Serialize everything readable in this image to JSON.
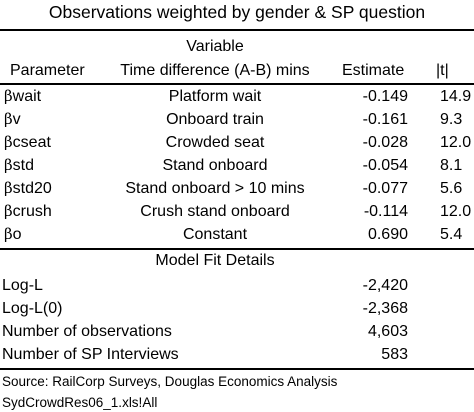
{
  "title": "Observations weighted by gender & SP question",
  "variable_header": "Variable",
  "columns": {
    "parameter": "Parameter",
    "time_difference": "Time difference (A-B) mins",
    "estimate": "Estimate",
    "t": "|t|"
  },
  "rows": [
    {
      "beta": "β",
      "sub": "wait",
      "description": "Platform wait",
      "estimate": "-0.149",
      "t": "14.9"
    },
    {
      "beta": "β",
      "sub": "v",
      "description": "Onboard train",
      "estimate": "-0.161",
      "t": "9.3"
    },
    {
      "beta": "β",
      "sub": "cseat",
      "description": "Crowded seat",
      "estimate": "-0.028",
      "t": "12.0"
    },
    {
      "beta": "β",
      "sub": "std",
      "description": "Stand onboard",
      "estimate": "-0.054",
      "t": "8.1"
    },
    {
      "beta": "β",
      "sub": "std20",
      "description": "Stand onboard > 10 mins",
      "estimate": "-0.077",
      "t": "5.6"
    },
    {
      "beta": "β",
      "sub": "crush",
      "description": "Crush stand onboard",
      "estimate": "-0.114",
      "t": "12.0"
    },
    {
      "beta": "β",
      "sub": "o",
      "description": "Constant",
      "estimate": "0.690",
      "t": "5.4"
    }
  ],
  "model_fit_header": "Model Fit Details",
  "fit": [
    {
      "label": "Log-L",
      "value": "-2,420"
    },
    {
      "label": "Log-L(0)",
      "value": "-2,368"
    },
    {
      "label": "Number of observations",
      "value": "4,603"
    },
    {
      "label": "Number of SP Interviews",
      "value": "583"
    }
  ],
  "source_lines": [
    "Source: RailCorp Surveys, Douglas Economics Analysis",
    "SydCrowdRes06_1.xls!All"
  ]
}
